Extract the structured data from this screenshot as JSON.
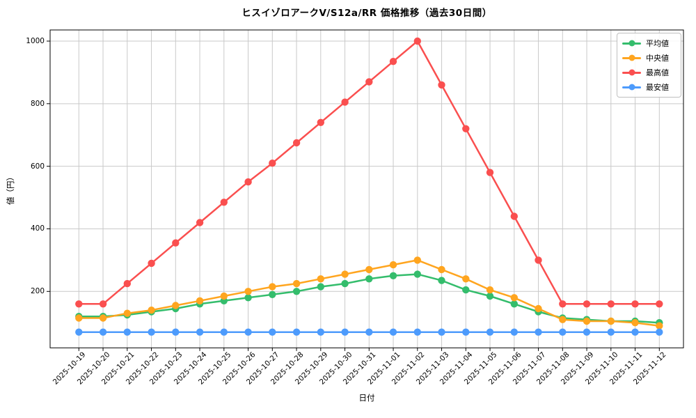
{
  "chart_data": {
    "type": "line",
    "title": "ヒスイゾロアークV/S12a/RR 価格推移（過去30日間）",
    "xlabel": "日付",
    "ylabel": "値（円）",
    "x": [
      "2025-10-19",
      "2025-10-20",
      "2025-10-21",
      "2025-10-22",
      "2025-10-23",
      "2025-10-24",
      "2025-10-25",
      "2025-10-26",
      "2025-10-27",
      "2025-10-28",
      "2025-10-29",
      "2025-10-30",
      "2025-10-31",
      "2025-11-01",
      "2025-11-02",
      "2025-11-03",
      "2025-11-04",
      "2025-11-05",
      "2025-11-06",
      "2025-11-07",
      "2025-11-08",
      "2025-11-09",
      "2025-11-10",
      "2025-11-11",
      "2025-11-12"
    ],
    "series": [
      {
        "name": "平均値",
        "color": "#34bd6c",
        "values": [
          120,
          120,
          125,
          135,
          145,
          160,
          170,
          180,
          190,
          200,
          215,
          225,
          240,
          250,
          255,
          235,
          205,
          185,
          160,
          135,
          115,
          110,
          105,
          105,
          100
        ]
      },
      {
        "name": "中央値",
        "color": "#ffa51f",
        "values": [
          115,
          115,
          130,
          140,
          155,
          170,
          185,
          200,
          215,
          225,
          240,
          255,
          270,
          285,
          300,
          270,
          240,
          205,
          180,
          145,
          110,
          105,
          105,
          100,
          90
        ]
      },
      {
        "name": "最高値",
        "color": "#fa4f4f",
        "values": [
          160,
          160,
          225,
          290,
          355,
          420,
          485,
          550,
          610,
          675,
          740,
          805,
          870,
          935,
          1000,
          860,
          720,
          580,
          440,
          300,
          160,
          160,
          160,
          160,
          160
        ]
      },
      {
        "name": "最安値",
        "color": "#4d9bfc",
        "values": [
          70,
          70,
          70,
          70,
          70,
          70,
          70,
          70,
          70,
          70,
          70,
          70,
          70,
          70,
          70,
          70,
          70,
          70,
          70,
          70,
          70,
          70,
          70,
          70,
          70
        ]
      }
    ],
    "yticks": [
      200,
      400,
      600,
      800,
      1000
    ],
    "ylim": [
      20,
      1036
    ],
    "grid": true,
    "grid_color": "#c9c9c9",
    "legend_position": "upper right",
    "marker": "o"
  }
}
